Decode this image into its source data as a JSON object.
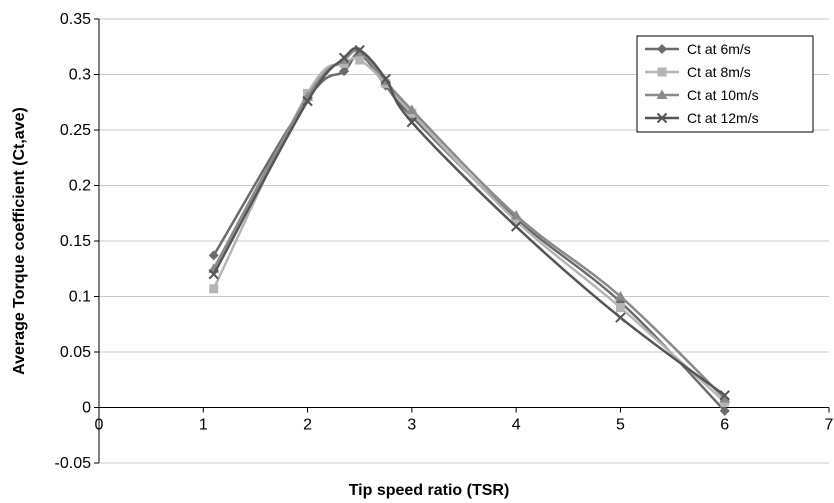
{
  "chart_data": {
    "type": "line",
    "title": "",
    "xlabel": "Tip speed ratio (TSR)",
    "ylabel": "Average Torque coefficient (Ct,ave)",
    "xlim": [
      0,
      7
    ],
    "ylim": [
      -0.05,
      0.35
    ],
    "xticks": [
      0,
      1,
      2,
      3,
      4,
      5,
      6,
      7
    ],
    "yticks": [
      -0.05,
      0,
      0.05,
      0.1,
      0.15,
      0.2,
      0.25,
      0.3,
      0.35
    ],
    "xtick_labels": [
      "0",
      "1",
      "2",
      "3",
      "4",
      "5",
      "6",
      "7"
    ],
    "ytick_labels": [
      "-0.05",
      "0",
      "0.05",
      "0.1",
      "0.15",
      "0.2",
      "0.25",
      "0.3",
      "0.35"
    ],
    "grid": "horizontal",
    "legend_position": "top-right",
    "series": [
      {
        "name": "Ct at 6m/s",
        "marker": "diamond",
        "color": "#6b6b6b",
        "x": [
          1.1,
          2.0,
          2.35,
          2.5,
          2.75,
          3.0,
          4.0,
          5.0,
          6.0
        ],
        "y": [
          0.137,
          0.278,
          0.303,
          0.318,
          0.29,
          0.262,
          0.17,
          0.095,
          -0.003
        ]
      },
      {
        "name": "Ct at 8m/s",
        "marker": "square",
        "color": "#b5b5b5",
        "x": [
          1.1,
          2.0,
          2.35,
          2.5,
          2.75,
          3.0,
          4.0,
          5.0,
          6.0
        ],
        "y": [
          0.107,
          0.283,
          0.31,
          0.313,
          0.292,
          0.265,
          0.168,
          0.09,
          0.005
        ]
      },
      {
        "name": "Ct at 10m/s",
        "marker": "triangle",
        "color": "#8a8a8a",
        "x": [
          1.1,
          2.0,
          2.35,
          2.5,
          2.75,
          3.0,
          4.0,
          5.0,
          6.0
        ],
        "y": [
          0.125,
          0.28,
          0.313,
          0.32,
          0.294,
          0.268,
          0.173,
          0.1,
          0.008
        ]
      },
      {
        "name": "Ct at 12m/s",
        "marker": "x",
        "color": "#555555",
        "x": [
          1.1,
          2.0,
          2.35,
          2.5,
          2.75,
          3.0,
          4.0,
          5.0,
          6.0
        ],
        "y": [
          0.12,
          0.276,
          0.315,
          0.322,
          0.296,
          0.257,
          0.163,
          0.081,
          0.011
        ]
      }
    ]
  }
}
